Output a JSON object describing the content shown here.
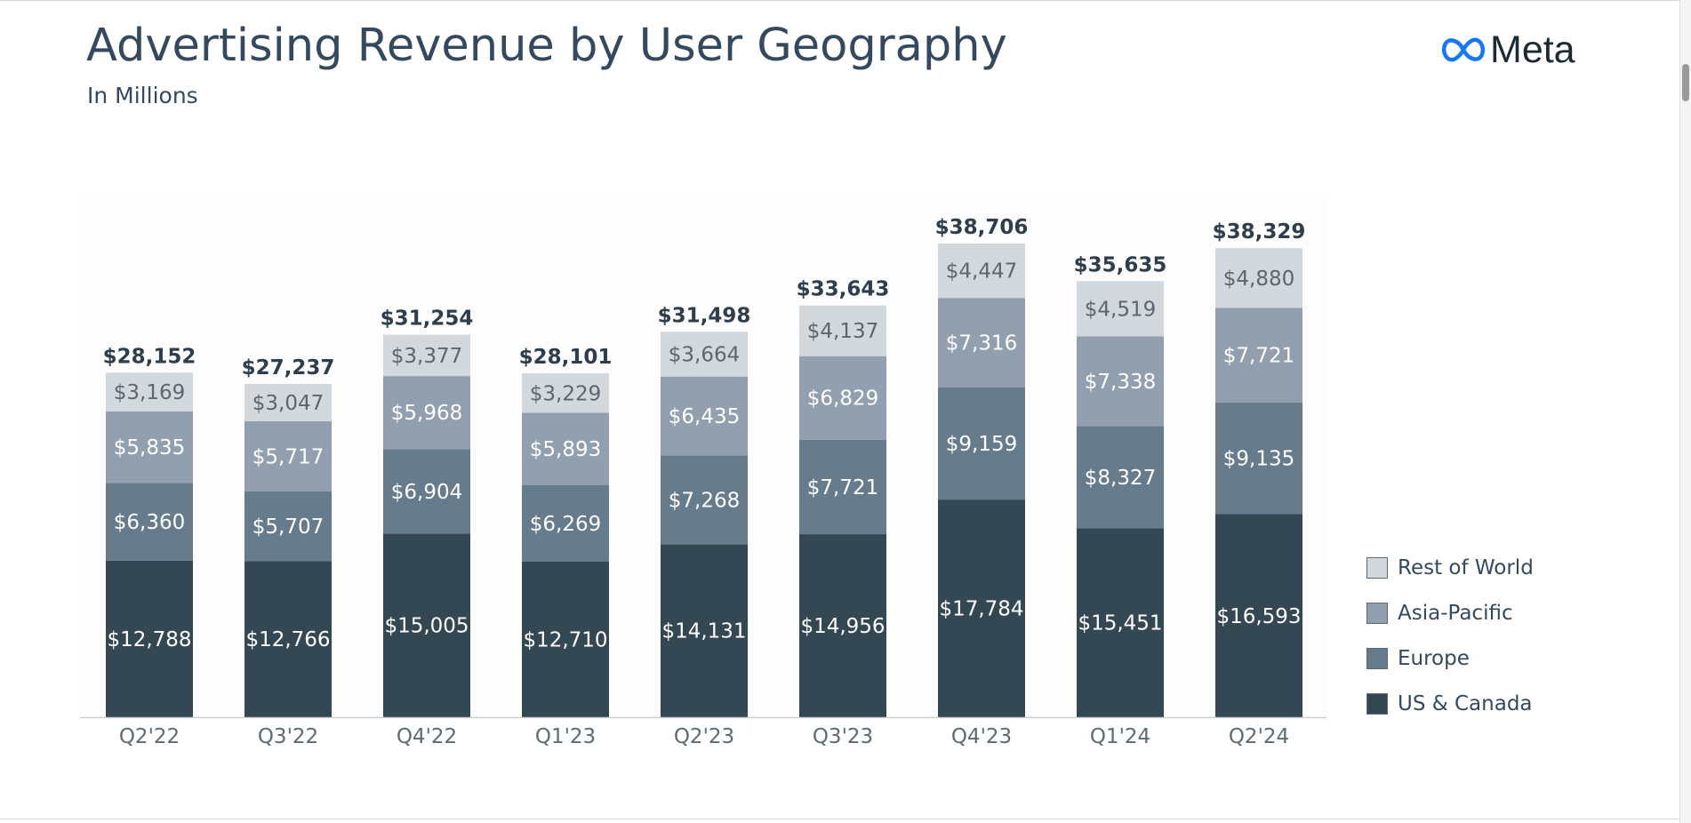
{
  "header": {
    "title": "Advertising Revenue by User Geography",
    "subtitle": "In Millions",
    "logo_text": "Meta",
    "logo_icon": "meta-infinity-icon"
  },
  "colors": {
    "us_canada": "#344854",
    "europe": "#667b8c",
    "asia_pacific": "#929faf",
    "rest_of_world": "#d3d8dd",
    "axis": "#c9cfd4",
    "tick_text": "#5e6a72",
    "total_text": "#2f3e4c",
    "plot_background": "#fdfdfd"
  },
  "legend": [
    {
      "label": "Rest of World",
      "color": "#d3d8dd"
    },
    {
      "label": "Asia-Pacific",
      "color": "#929faf"
    },
    {
      "label": "Europe",
      "color": "#667b8c"
    },
    {
      "label": "US & Canada",
      "color": "#344854"
    }
  ],
  "chart_data": {
    "type": "bar",
    "stacked": true,
    "title": "Advertising Revenue by User Geography",
    "subtitle": "In Millions",
    "xlabel": "",
    "ylabel": "",
    "ylim": [
      0,
      40000
    ],
    "grid": false,
    "legend_position": "right",
    "categories": [
      "Q2'22",
      "Q3'22",
      "Q4'22",
      "Q1'23",
      "Q2'23",
      "Q3'23",
      "Q4'23",
      "Q1'24",
      "Q2'24"
    ],
    "series": [
      {
        "name": "US & Canada",
        "values": [
          12788,
          12766,
          15005,
          12710,
          14131,
          14956,
          17784,
          15451,
          16593
        ],
        "labels": [
          "$12,788",
          "$12,766",
          "$15,005",
          "$12,710",
          "$14,131",
          "$14,956",
          "$17,784",
          "$15,451",
          "$16,593"
        ]
      },
      {
        "name": "Europe",
        "values": [
          6360,
          5707,
          6904,
          6269,
          7268,
          7721,
          9159,
          8327,
          9135
        ],
        "labels": [
          "$6,360",
          "$5,707",
          "$6,904",
          "$6,269",
          "$7,268",
          "$7,721",
          "$9,159",
          "$8,327",
          "$9,135"
        ]
      },
      {
        "name": "Asia-Pacific",
        "values": [
          5835,
          5717,
          5968,
          5893,
          6435,
          6829,
          7316,
          7338,
          7721
        ],
        "labels": [
          "$5,835",
          "$5,717",
          "$5,968",
          "$5,893",
          "$6,435",
          "$6,829",
          "$7,316",
          "$7,338",
          "$7,721"
        ]
      },
      {
        "name": "Rest of World",
        "values": [
          3169,
          3047,
          3377,
          3229,
          3664,
          4137,
          4447,
          4519,
          4880
        ],
        "labels": [
          "$3,169",
          "$3,047",
          "$3,377",
          "$3,229",
          "$3,664",
          "$4,137",
          "$4,447",
          "$4,519",
          "$4,880"
        ]
      }
    ],
    "totals": [
      28152,
      27237,
      31254,
      28101,
      31498,
      33643,
      38706,
      35635,
      38329
    ],
    "total_labels": [
      "$28,152",
      "$27,237",
      "$31,254",
      "$28,101",
      "$31,498",
      "$33,643",
      "$38,706",
      "$35,635",
      "$38,329"
    ]
  }
}
